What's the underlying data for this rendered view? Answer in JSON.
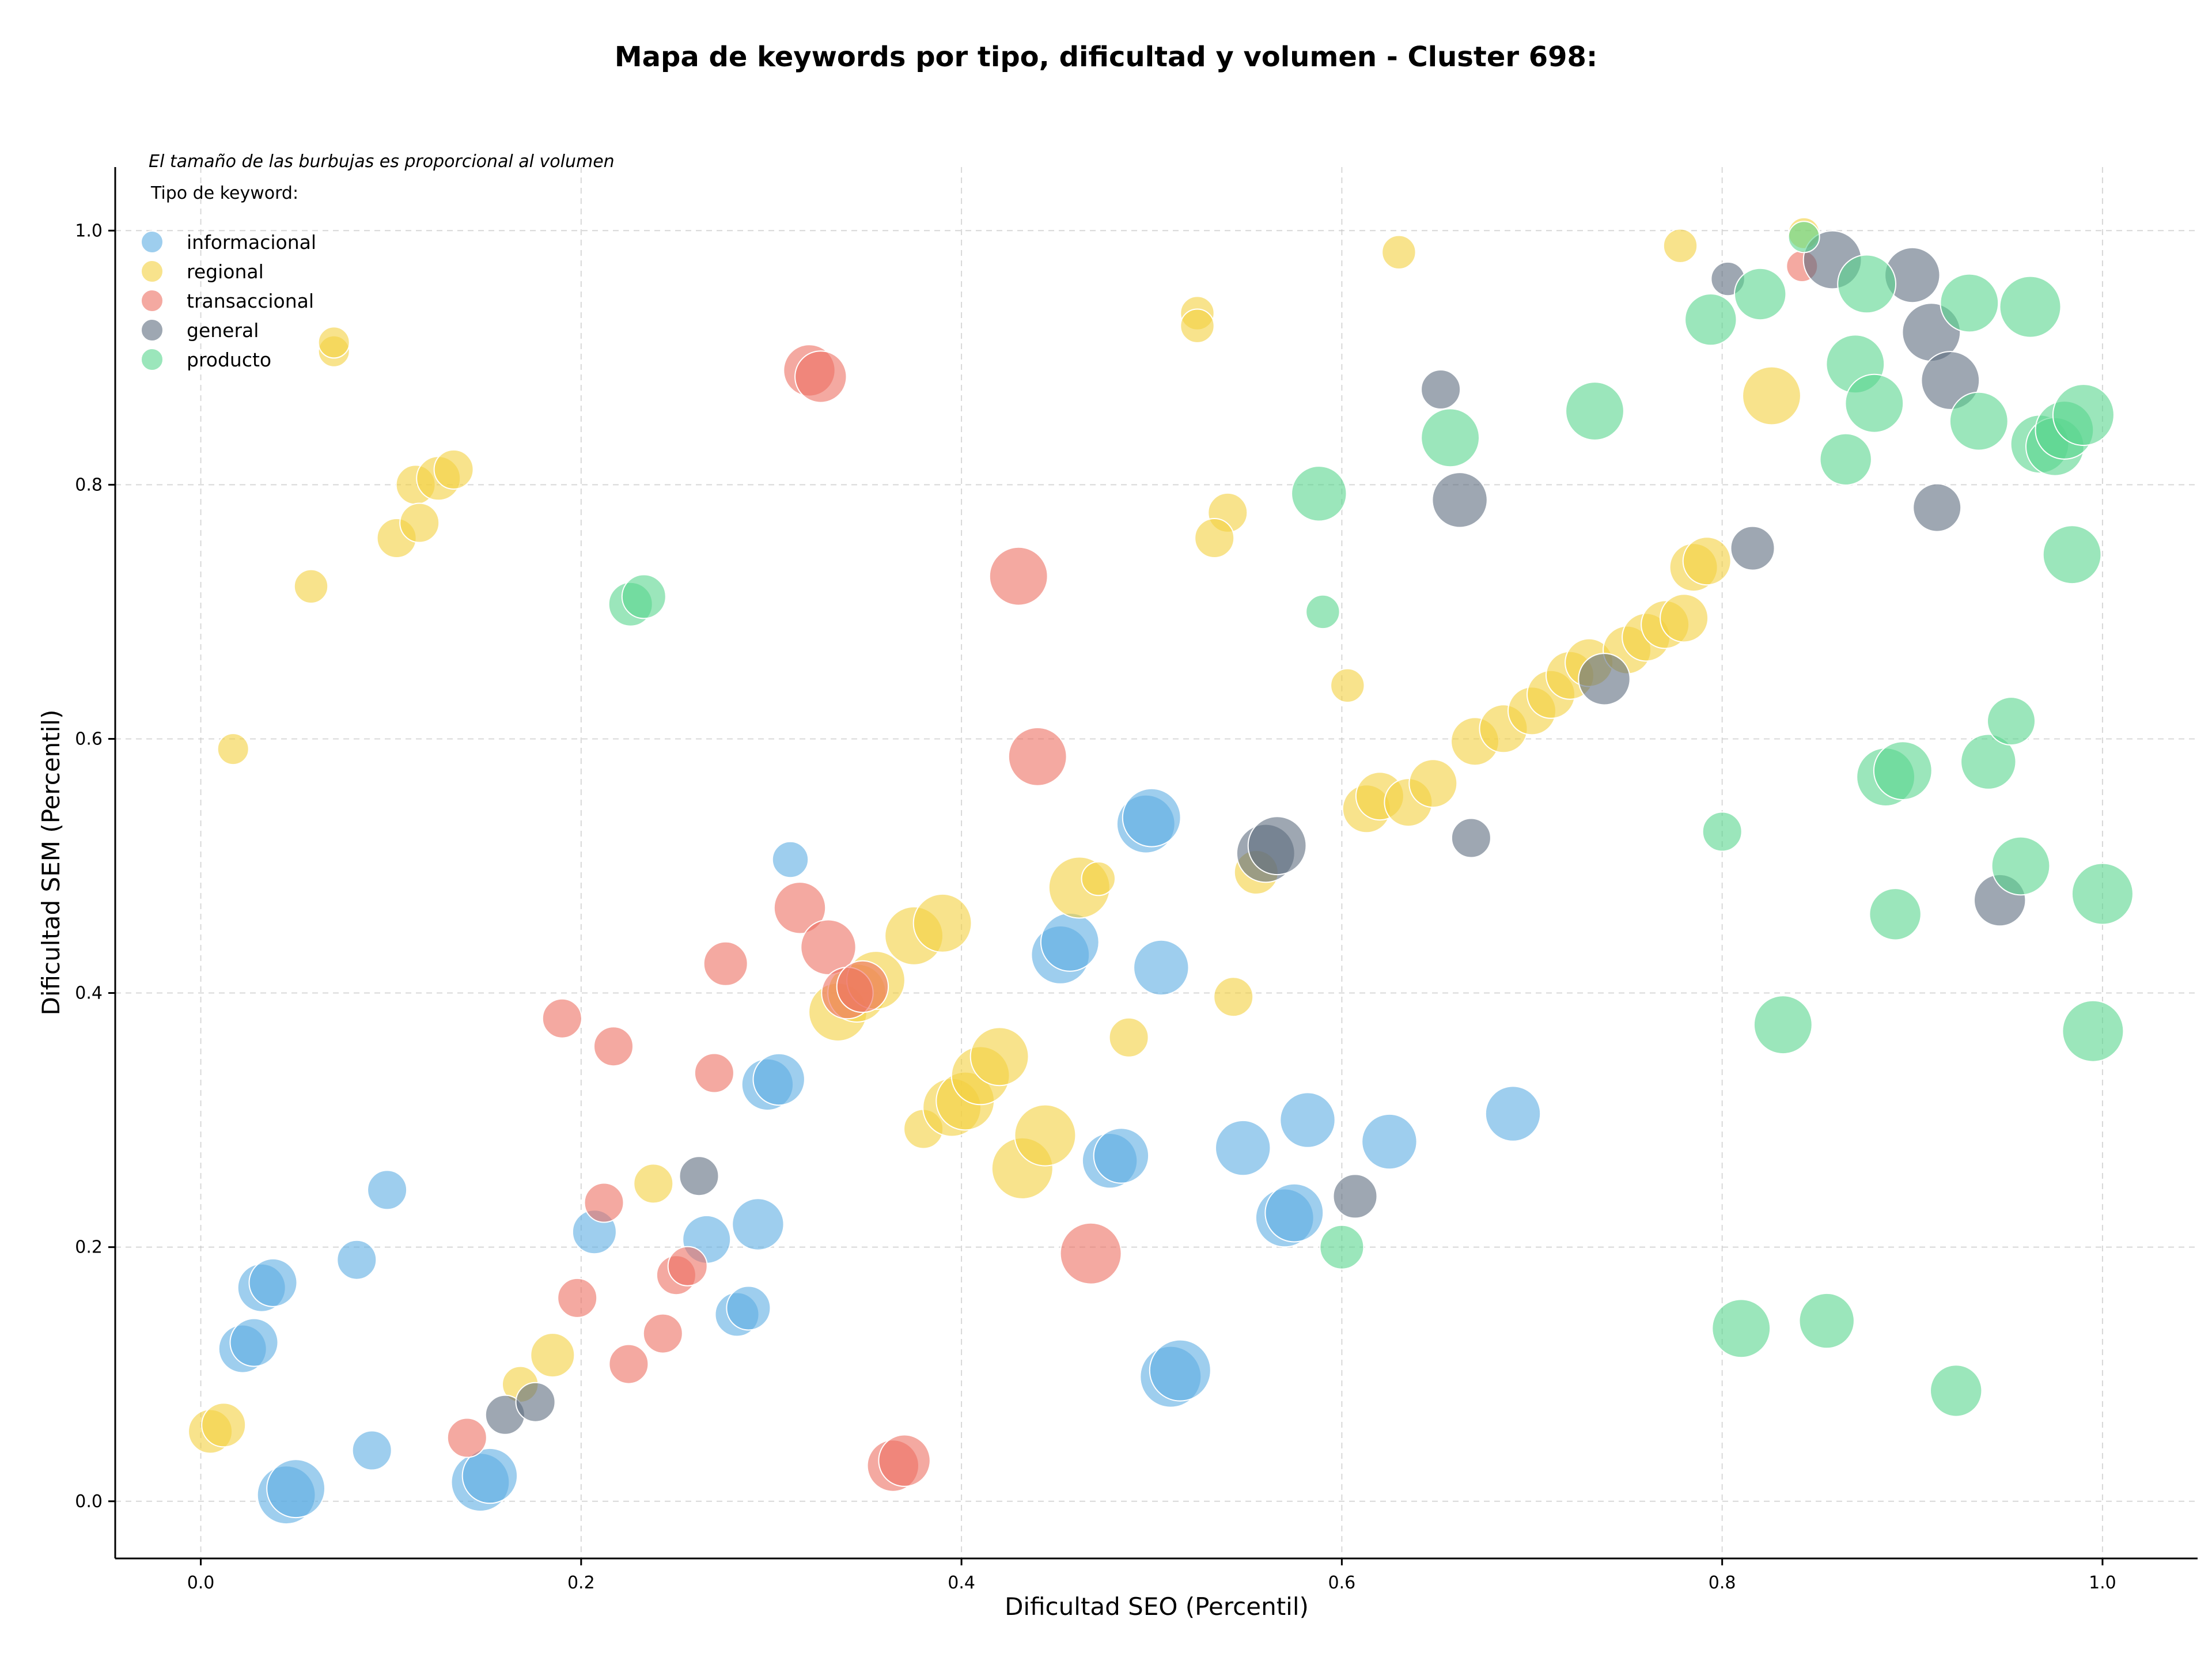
{
  "chart_data": {
    "type": "scatter",
    "title": "Mapa de keywords por tipo, dificultad y volumen - Cluster 698:",
    "xlabel": "Dificultad SEO (Percentil)",
    "ylabel": "Dificultad SEM (Percentil)",
    "note": "El tamaño de las burbujas es proporcional al volumen",
    "legend_title": "Tipo de keyword:",
    "legend_position": "top-left",
    "xlim": [
      -0.045,
      1.05
    ],
    "ylim": [
      -0.045,
      1.05
    ],
    "xticks": [
      "0.0",
      "0.2",
      "0.4",
      "0.6",
      "0.8",
      "1.0"
    ],
    "yticks": [
      "0.0",
      "0.2",
      "0.4",
      "0.6",
      "0.8",
      "1.0"
    ],
    "grid": true,
    "series": [
      {
        "name": "informacional",
        "color": "#5DADE2",
        "points": [
          [
            0.045,
            0.005,
            4
          ],
          [
            0.05,
            0.01,
            4
          ],
          [
            0.147,
            0.015,
            4
          ],
          [
            0.152,
            0.02,
            3.5
          ],
          [
            0.09,
            0.04,
            1.5
          ],
          [
            0.022,
            0.12,
            2.5
          ],
          [
            0.028,
            0.125,
            2.5
          ],
          [
            0.032,
            0.168,
            2.5
          ],
          [
            0.038,
            0.172,
            2.5
          ],
          [
            0.082,
            0.19,
            1.5
          ],
          [
            0.098,
            0.245,
            1.5
          ],
          [
            0.207,
            0.212,
            2
          ],
          [
            0.266,
            0.206,
            2.5
          ],
          [
            0.293,
            0.218,
            3
          ],
          [
            0.282,
            0.147,
            2
          ],
          [
            0.288,
            0.152,
            2
          ],
          [
            0.298,
            0.328,
            3
          ],
          [
            0.304,
            0.332,
            3
          ],
          [
            0.31,
            0.505,
            1.2
          ],
          [
            0.452,
            0.43,
            4
          ],
          [
            0.457,
            0.44,
            4
          ],
          [
            0.505,
            0.42,
            3.5
          ],
          [
            0.497,
            0.533,
            4
          ],
          [
            0.5,
            0.538,
            4
          ],
          [
            0.478,
            0.268,
            3.5
          ],
          [
            0.484,
            0.272,
            3.5
          ],
          [
            0.548,
            0.278,
            3.5
          ],
          [
            0.57,
            0.223,
            4
          ],
          [
            0.575,
            0.227,
            4
          ],
          [
            0.582,
            0.3,
            3.5
          ],
          [
            0.625,
            0.283,
            3.5
          ],
          [
            0.69,
            0.305,
            3.5
          ],
          [
            0.51,
            0.098,
            4.5
          ],
          [
            0.515,
            0.103,
            4.5
          ]
        ]
      },
      {
        "name": "regional",
        "color": "#F4D03F",
        "points": [
          [
            0.005,
            0.055,
            2
          ],
          [
            0.012,
            0.06,
            2
          ],
          [
            0.017,
            0.592,
            0.8
          ],
          [
            0.058,
            0.72,
            1
          ],
          [
            0.07,
            0.905,
            0.8
          ],
          [
            0.07,
            0.912,
            0.8
          ],
          [
            0.103,
            0.758,
            1.5
          ],
          [
            0.113,
            0.8,
            1.5
          ],
          [
            0.115,
            0.77,
            1.5
          ],
          [
            0.125,
            0.805,
            2
          ],
          [
            0.133,
            0.812,
            1.5
          ],
          [
            0.168,
            0.092,
            1.2
          ],
          [
            0.185,
            0.115,
            2
          ],
          [
            0.238,
            0.25,
            1.5
          ],
          [
            0.335,
            0.385,
            4
          ],
          [
            0.345,
            0.4,
            4
          ],
          [
            0.355,
            0.41,
            4
          ],
          [
            0.375,
            0.445,
            4
          ],
          [
            0.39,
            0.455,
            4
          ],
          [
            0.38,
            0.293,
            1.5
          ],
          [
            0.395,
            0.31,
            4
          ],
          [
            0.402,
            0.315,
            4
          ],
          [
            0.41,
            0.335,
            4
          ],
          [
            0.42,
            0.35,
            4
          ],
          [
            0.432,
            0.262,
            4.5
          ],
          [
            0.444,
            0.288,
            4.5
          ],
          [
            0.462,
            0.483,
            4.5
          ],
          [
            0.472,
            0.49,
            1
          ],
          [
            0.488,
            0.365,
            1.5
          ],
          [
            0.524,
            0.935,
            1
          ],
          [
            0.524,
            0.925,
            1
          ],
          [
            0.54,
            0.778,
            1.5
          ],
          [
            0.533,
            0.758,
            1.5
          ],
          [
            0.543,
            0.397,
            1.5
          ],
          [
            0.555,
            0.495,
            2
          ],
          [
            0.603,
            0.642,
            1
          ],
          [
            0.613,
            0.545,
            2.5
          ],
          [
            0.62,
            0.555,
            2.5
          ],
          [
            0.635,
            0.55,
            2.5
          ],
          [
            0.648,
            0.565,
            2.5
          ],
          [
            0.67,
            0.598,
            2.5
          ],
          [
            0.685,
            0.608,
            2.5
          ],
          [
            0.7,
            0.622,
            2.5
          ],
          [
            0.71,
            0.635,
            2.5
          ],
          [
            0.72,
            0.65,
            2.5
          ],
          [
            0.73,
            0.66,
            2.5
          ],
          [
            0.75,
            0.67,
            2.5
          ],
          [
            0.76,
            0.68,
            2.5
          ],
          [
            0.77,
            0.69,
            2.5
          ],
          [
            0.78,
            0.695,
            2.5
          ],
          [
            0.785,
            0.735,
            2.5
          ],
          [
            0.792,
            0.74,
            2.5
          ],
          [
            0.63,
            0.983,
            1
          ],
          [
            0.778,
            0.988,
            1
          ],
          [
            0.826,
            0.87,
            4
          ],
          [
            0.843,
            0.998,
            0.8
          ]
        ]
      },
      {
        "name": "transaccional",
        "color": "#EC7063",
        "points": [
          [
            0.14,
            0.05,
            1.5
          ],
          [
            0.19,
            0.38,
            1.5
          ],
          [
            0.198,
            0.16,
            1.5
          ],
          [
            0.212,
            0.235,
            1.5
          ],
          [
            0.217,
            0.358,
            1.5
          ],
          [
            0.225,
            0.108,
            1.5
          ],
          [
            0.243,
            0.132,
            1.5
          ],
          [
            0.25,
            0.178,
            1.5
          ],
          [
            0.256,
            0.185,
            1.5
          ],
          [
            0.27,
            0.337,
            1.5
          ],
          [
            0.276,
            0.423,
            2
          ],
          [
            0.315,
            0.467,
            3
          ],
          [
            0.32,
            0.89,
            3
          ],
          [
            0.326,
            0.885,
            3
          ],
          [
            0.33,
            0.436,
            3.5
          ],
          [
            0.34,
            0.4,
            3
          ],
          [
            0.348,
            0.405,
            3
          ],
          [
            0.364,
            0.028,
            3
          ],
          [
            0.37,
            0.032,
            3
          ],
          [
            0.43,
            0.728,
            4
          ],
          [
            0.44,
            0.586,
            4
          ],
          [
            0.468,
            0.195,
            4.5
          ],
          [
            0.842,
            0.972,
            0.8
          ]
        ]
      },
      {
        "name": "general",
        "color": "#5D6D7E",
        "points": [
          [
            0.16,
            0.068,
            1.5
          ],
          [
            0.176,
            0.078,
            1.5
          ],
          [
            0.262,
            0.256,
            1.5
          ],
          [
            0.607,
            0.24,
            2
          ],
          [
            0.652,
            0.875,
            1.5
          ],
          [
            0.662,
            0.788,
            3.5
          ],
          [
            0.668,
            0.522,
            1.5
          ],
          [
            0.738,
            0.647,
            3
          ],
          [
            0.56,
            0.51,
            4
          ],
          [
            0.566,
            0.516,
            4
          ],
          [
            0.803,
            0.962,
            1
          ],
          [
            0.816,
            0.75,
            2
          ],
          [
            0.858,
            0.977,
            4
          ],
          [
            0.9,
            0.965,
            3.5
          ],
          [
            0.91,
            0.92,
            4
          ],
          [
            0.92,
            0.882,
            4
          ],
          [
            0.913,
            0.782,
            2.5
          ],
          [
            0.946,
            0.473,
            3
          ]
        ]
      },
      {
        "name": "producto",
        "color": "#58D68D",
        "points": [
          [
            0.226,
            0.706,
            2
          ],
          [
            0.233,
            0.712,
            2
          ],
          [
            0.59,
            0.7,
            1
          ],
          [
            0.588,
            0.793,
            3.5
          ],
          [
            0.6,
            0.2,
            2
          ],
          [
            0.657,
            0.837,
            4
          ],
          [
            0.733,
            0.858,
            4
          ],
          [
            0.794,
            0.93,
            3
          ],
          [
            0.8,
            0.527,
            1.5
          ],
          [
            0.82,
            0.95,
            3
          ],
          [
            0.81,
            0.136,
            4
          ],
          [
            0.832,
            0.375,
            4
          ],
          [
            0.843,
            0.995,
            0.8
          ],
          [
            0.855,
            0.142,
            3.5
          ],
          [
            0.865,
            0.82,
            3
          ],
          [
            0.87,
            0.895,
            4
          ],
          [
            0.876,
            0.958,
            4
          ],
          [
            0.88,
            0.864,
            4
          ],
          [
            0.886,
            0.57,
            4
          ],
          [
            0.891,
            0.462,
            3
          ],
          [
            0.895,
            0.575,
            4
          ],
          [
            0.923,
            0.087,
            3
          ],
          [
            0.93,
            0.943,
            4
          ],
          [
            0.935,
            0.85,
            4
          ],
          [
            0.94,
            0.582,
            3.5
          ],
          [
            0.952,
            0.614,
            2.5
          ],
          [
            0.957,
            0.5,
            4
          ],
          [
            0.962,
            0.94,
            4.5
          ],
          [
            0.967,
            0.832,
            4
          ],
          [
            0.975,
            0.83,
            4
          ],
          [
            0.98,
            0.843,
            4
          ],
          [
            0.984,
            0.745,
            4
          ],
          [
            0.99,
            0.855,
            4.5
          ],
          [
            0.995,
            0.37,
            4.5
          ],
          [
            1.0,
            0.478,
            4.5
          ]
        ]
      }
    ]
  }
}
